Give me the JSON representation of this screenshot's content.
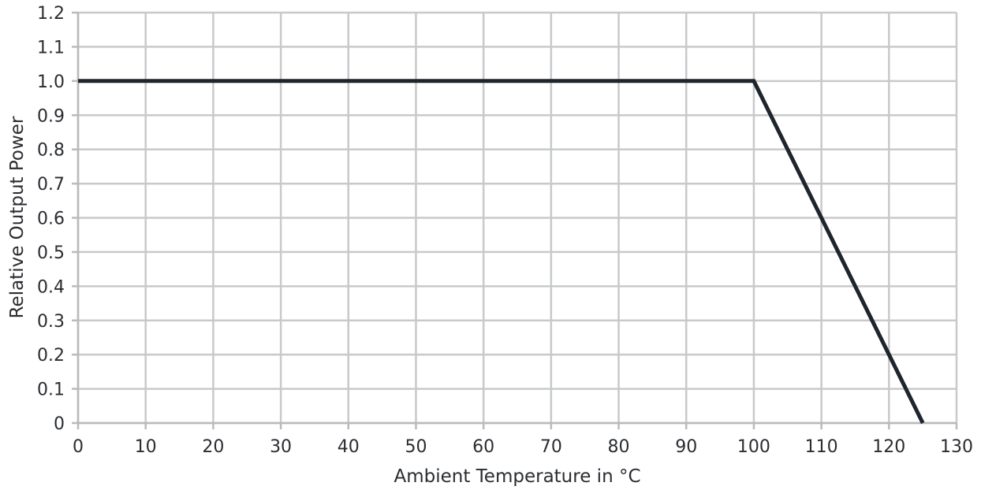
{
  "chart_data": {
    "type": "line",
    "title": "",
    "xlabel": "Ambient Temperature in °C",
    "ylabel": "Relative Output Power",
    "xlim": [
      0,
      130
    ],
    "ylim": [
      0,
      1.2
    ],
    "x_ticks": [
      "0",
      "10",
      "20",
      "30",
      "40",
      "50",
      "60",
      "70",
      "80",
      "90",
      "100",
      "110",
      "120",
      "130"
    ],
    "y_ticks": [
      "0",
      "0.1",
      "0.2",
      "0.3",
      "0.4",
      "0.5",
      "0.6",
      "0.7",
      "0.8",
      "0.9",
      "1.0",
      "1.1",
      "1.2"
    ],
    "grid": true,
    "legend": "none",
    "series": [
      {
        "color": "#1f252c",
        "x": [
          0,
          100,
          125
        ],
        "y": [
          1.0,
          1.0,
          0.0
        ]
      }
    ]
  }
}
